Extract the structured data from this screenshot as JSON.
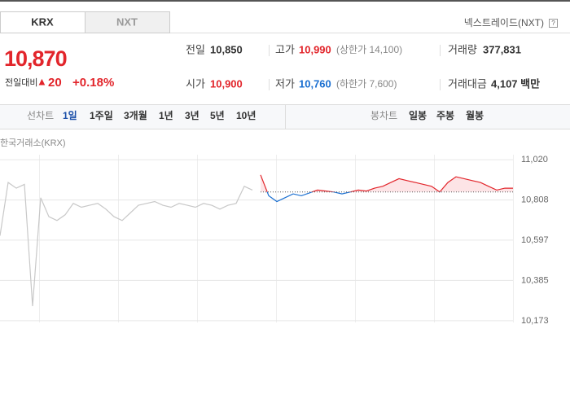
{
  "header": {
    "tabs": [
      "KRX",
      "NXT"
    ],
    "nxt_link": "넥스트레이드(NXT)",
    "help_icon": "?"
  },
  "price": {
    "current": "10,870",
    "change_label": "전일대비",
    "arrow": "▲",
    "change": "20",
    "change_pct": "+0.18%"
  },
  "info": {
    "rows": [
      [
        {
          "label": "전일",
          "value": "10,850"
        },
        {
          "label": "고가",
          "value": "10,990",
          "note": "(상한가 14,100)"
        },
        {
          "label": "거래량",
          "value": "377,831"
        }
      ],
      [
        {
          "label": "시가",
          "value": "10,900"
        },
        {
          "label": "저가",
          "value": "10,760",
          "note": "(하한가 7,600)"
        },
        {
          "label": "거래대금",
          "value": "4,107 백만"
        }
      ]
    ]
  },
  "toolbar": {
    "line_chart": {
      "label": "선차트",
      "options": [
        "1일",
        "1주일",
        "3개월",
        "1년",
        "3년",
        "5년",
        "10년"
      ]
    },
    "candle_chart": {
      "label": "봉차트",
      "options": [
        "일봉",
        "주봉",
        "월봉"
      ]
    }
  },
  "chart_data": {
    "type": "line",
    "title": "한국거래소(KRX)",
    "x": [
      0,
      1,
      2,
      3,
      4,
      5,
      6,
      7,
      8,
      9,
      10,
      11,
      12,
      13,
      14,
      15,
      16,
      17,
      18,
      19,
      20,
      21,
      22,
      23,
      24,
      25,
      26,
      27,
      28,
      29,
      30,
      31,
      32,
      33,
      34,
      35,
      36,
      37,
      38,
      39,
      40,
      41,
      42,
      43,
      44,
      45,
      46,
      47,
      48,
      49,
      50,
      51,
      52,
      53,
      54,
      55,
      56,
      57,
      58,
      59,
      60,
      61,
      62,
      63
    ],
    "xlim": [
      0,
      63
    ],
    "ylim": [
      10164,
      11046
    ],
    "yticks": [
      {
        "value": 10173,
        "label": "10,173"
      },
      {
        "value": 10385,
        "label": "10,385"
      },
      {
        "value": 10597,
        "label": "10,597"
      },
      {
        "value": 10808,
        "label": "10,808"
      },
      {
        "value": 11020,
        "label": "11,020"
      }
    ],
    "grid": true,
    "baseline": 10850,
    "series": [
      {
        "color": "#c8c8c8",
        "values": [
          10620,
          10900,
          10870,
          10890,
          10250,
          10820,
          10720,
          10700,
          10730,
          10790,
          10770,
          10780,
          10790,
          10760,
          10720,
          10700,
          10740,
          10780,
          10790,
          10800,
          10780,
          10770,
          10790,
          10780,
          10770,
          10790,
          10780,
          10760,
          10780,
          10790,
          10880,
          10860,
          null,
          null,
          null,
          null,
          null,
          null,
          null,
          null,
          null,
          null,
          null,
          null,
          null,
          null,
          null,
          null,
          null,
          null,
          null,
          null,
          null,
          null,
          null,
          null,
          null,
          null,
          null,
          null,
          null,
          null,
          null,
          null
        ]
      },
      {
        "color": "#e2252b",
        "down_color": "#1a6fd1",
        "fill": "#fde4e6",
        "values": [
          null,
          null,
          null,
          null,
          null,
          null,
          null,
          null,
          null,
          null,
          null,
          null,
          null,
          null,
          null,
          null,
          null,
          null,
          null,
          null,
          null,
          null,
          null,
          null,
          null,
          null,
          null,
          null,
          null,
          null,
          null,
          null,
          10940,
          10830,
          10800,
          10820,
          10840,
          10830,
          10845,
          10860,
          10855,
          10850,
          10840,
          10850,
          10860,
          10855,
          10870,
          10880,
          10900,
          10920,
          10910,
          10900,
          10890,
          10880,
          10850,
          10900,
          10930,
          10920,
          10910,
          10900,
          10880,
          10860,
          10870,
          10870
        ]
      }
    ]
  }
}
